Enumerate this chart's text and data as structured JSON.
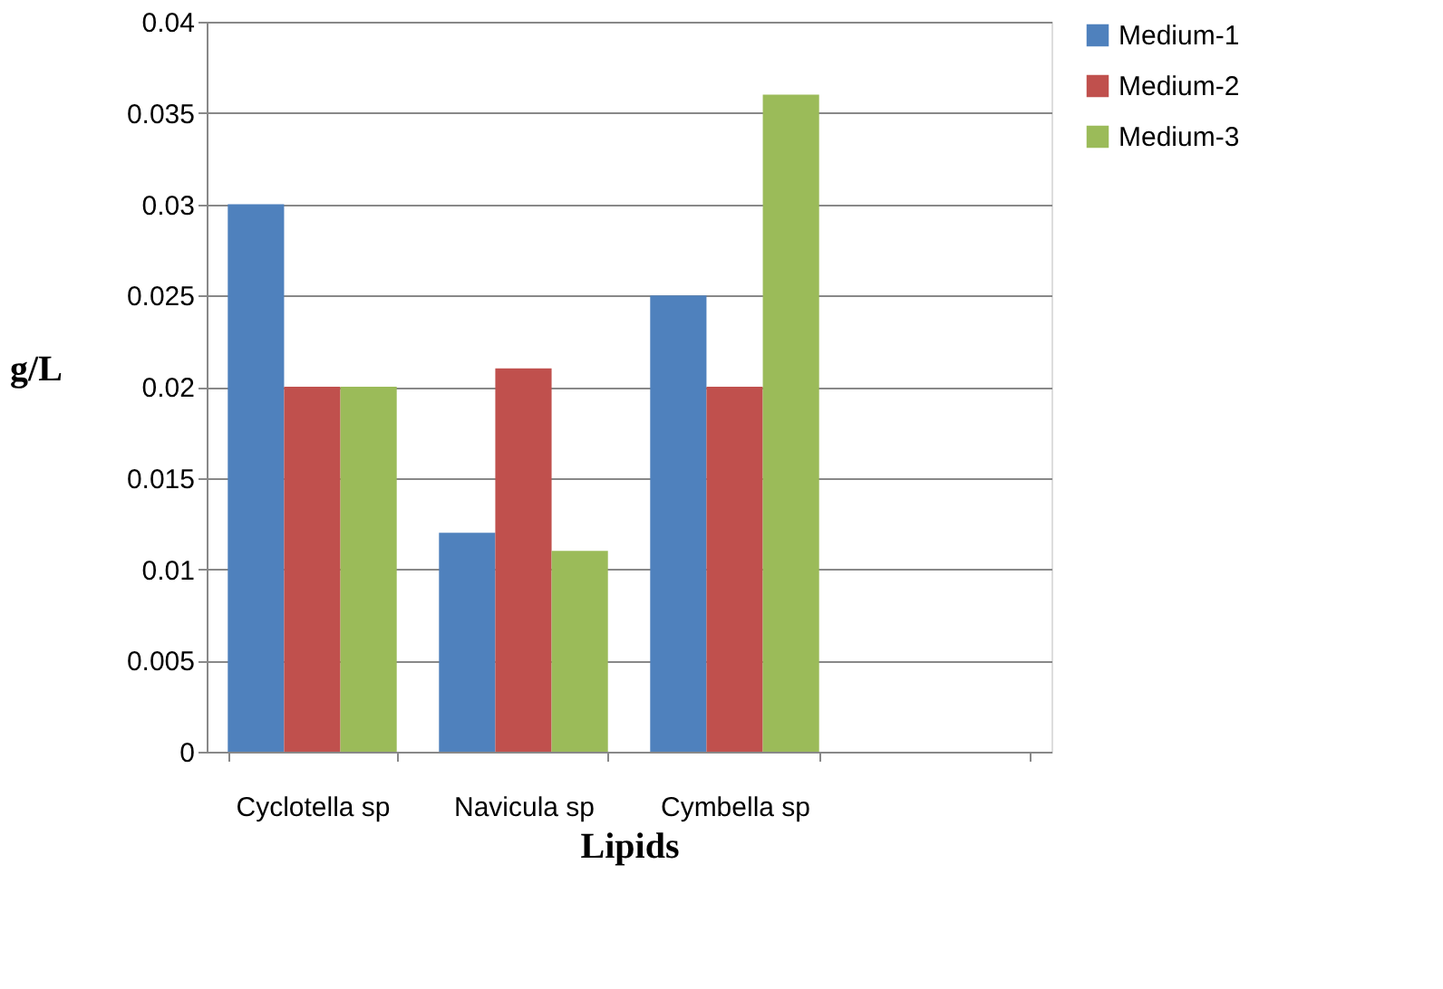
{
  "chart_data": {
    "type": "bar",
    "xlabel": "Lipids",
    "ylabel": "g/L",
    "categories": [
      "Cyclotella sp",
      "Navicula sp",
      "Cymbella sp",
      null
    ],
    "series": [
      {
        "name": "Medium-1",
        "color": "#4f81bd",
        "values": [
          0.03,
          0.012,
          0.025,
          null
        ]
      },
      {
        "name": "Medium-2",
        "color": "#c0504d",
        "values": [
          0.02,
          0.021,
          0.02,
          null
        ]
      },
      {
        "name": "Medium-3",
        "color": "#9bbb59",
        "values": [
          0.02,
          0.011,
          0.036,
          null
        ]
      }
    ],
    "ylim": [
      0,
      0.04
    ],
    "yticks": [
      0,
      0.005,
      0.01,
      0.015,
      0.02,
      0.025,
      0.03,
      0.035,
      0.04
    ],
    "grid": "y",
    "legend": "right"
  }
}
